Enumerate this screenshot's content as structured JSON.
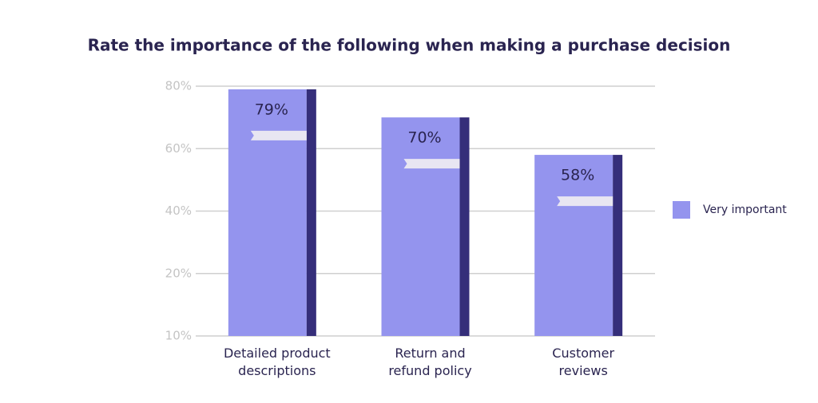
{
  "chart_data": {
    "type": "bar",
    "title": "Rate the importance of the following when making a purchase decision",
    "categories": [
      "Detailed product\ndescriptions",
      "Return and\nrefund policy",
      "Customer\nreviews"
    ],
    "series": [
      {
        "name": "Very important",
        "color": "#9494ee",
        "values": [
          79,
          70,
          58
        ],
        "value_labels": [
          "79%",
          "70%",
          "58%"
        ]
      }
    ],
    "edge_color": "#352e7a",
    "ylim": [
      10,
      80
    ],
    "yticks": [
      {
        "value": 10,
        "label": "10%"
      },
      {
        "value": 20,
        "label": "20%"
      },
      {
        "value": 40,
        "label": "40%"
      },
      {
        "value": 60,
        "label": "60%"
      },
      {
        "value": 80,
        "label": "80%"
      }
    ],
    "grid": true,
    "legend": "right"
  }
}
